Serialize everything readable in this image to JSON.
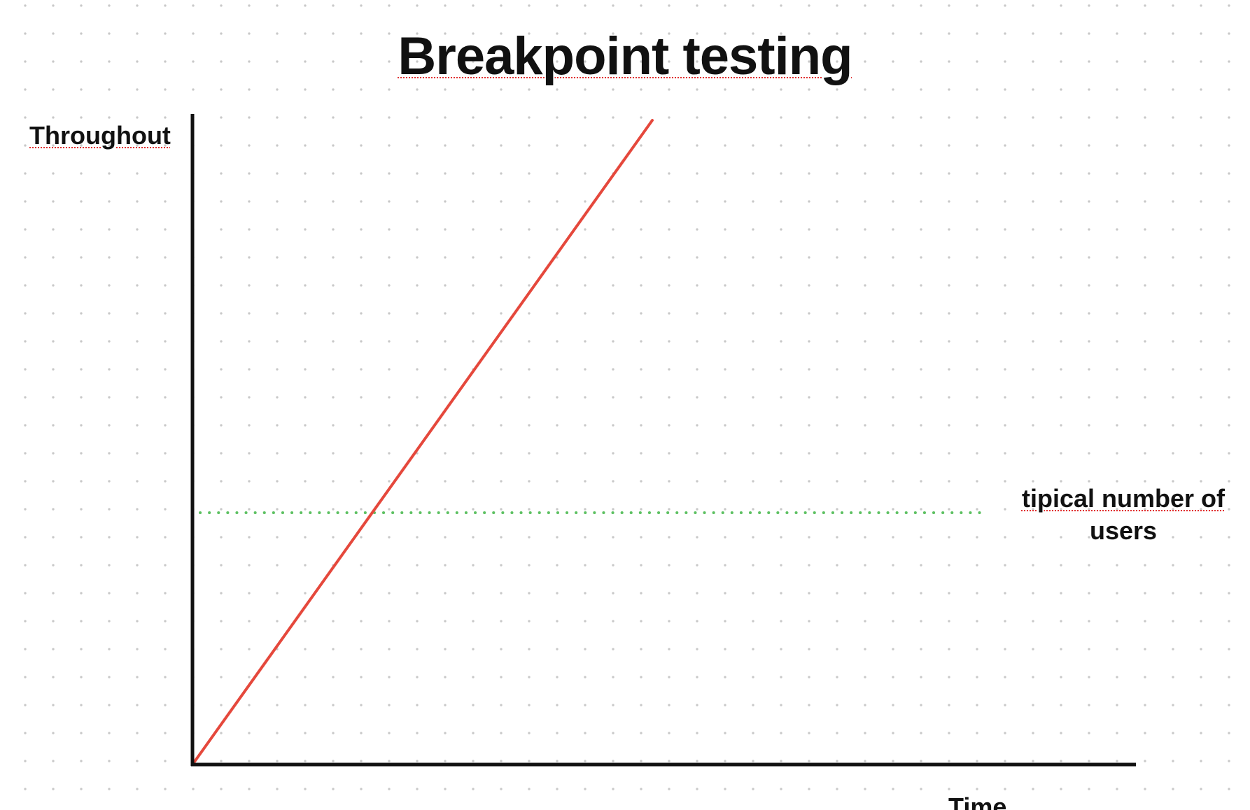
{
  "chart_data": {
    "type": "line",
    "title": "Breakpoint testing",
    "xlabel": "Time",
    "ylabel": "Throughout",
    "series": [
      {
        "values": [
          0,
          1
        ]
      }
    ],
    "reference_line": {
      "label_line1": "tipical number of",
      "label_line2": "users",
      "y": 0.39,
      "style": "dotted"
    },
    "grid": "dotted background"
  },
  "colors": {
    "series": "#e5483c",
    "reference": "#5cc061",
    "axis": "#111111"
  }
}
